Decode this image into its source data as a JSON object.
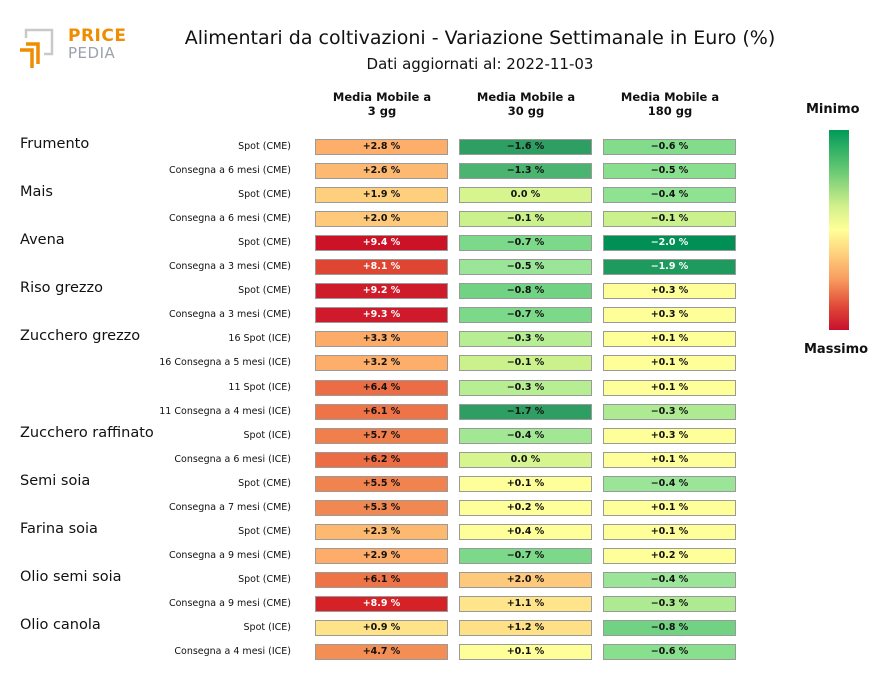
{
  "logo": {
    "line1": "PRICE",
    "line2": "PEDIA"
  },
  "title": "Alimentari da coltivazioni - Variazione Settimanale in Euro (%)",
  "subtitle": "Dati aggiornati al: 2022-11-03",
  "legend": {
    "min_label": "Minimo",
    "max_label": "Massimo"
  },
  "chart_data": {
    "type": "table",
    "title": "Alimentari da coltivazioni - Variazione Settimanale in Euro (%)",
    "columns": [
      "Media Mobile a\n3 gg",
      "Media Mobile a\n30 gg",
      "Media Mobile a\n180 gg"
    ],
    "groups": [
      {
        "name": "Frumento",
        "rows": [
          {
            "label": "Spot (CME)",
            "values": [
              "+2.8 %",
              "−1.6 %",
              "−0.6 %"
            ]
          },
          {
            "label": "Consegna a 6 mesi (CME)",
            "values": [
              "+2.6 %",
              "−1.3 %",
              "−0.5 %"
            ]
          }
        ]
      },
      {
        "name": "Mais",
        "rows": [
          {
            "label": "Spot (CME)",
            "values": [
              "+1.9 %",
              "0.0 %",
              "−0.4 %"
            ]
          },
          {
            "label": "Consegna a 6 mesi (CME)",
            "values": [
              "+2.0 %",
              "−0.1 %",
              "−0.1 %"
            ]
          }
        ]
      },
      {
        "name": "Avena",
        "rows": [
          {
            "label": "Spot (CME)",
            "values": [
              "+9.4 %",
              "−0.7 %",
              "−2.0 %"
            ]
          },
          {
            "label": "Consegna a 3 mesi (CME)",
            "values": [
              "+8.1 %",
              "−0.5 %",
              "−1.9 %"
            ]
          }
        ]
      },
      {
        "name": "Riso grezzo",
        "rows": [
          {
            "label": "Spot (CME)",
            "values": [
              "+9.2 %",
              "−0.8 %",
              "+0.3 %"
            ]
          },
          {
            "label": "Consegna a 3 mesi (CME)",
            "values": [
              "+9.3 %",
              "−0.7 %",
              "+0.3 %"
            ]
          }
        ]
      },
      {
        "name": "Zucchero grezzo",
        "rows": [
          {
            "label": "16 Spot (ICE)",
            "values": [
              "+3.3 %",
              "−0.3 %",
              "+0.1 %"
            ]
          },
          {
            "label": "16 Consegna a 5 mesi (ICE)",
            "values": [
              "+3.2 %",
              "−0.1 %",
              "+0.1 %"
            ]
          },
          {
            "label": "11 Spot (ICE)",
            "values": [
              "+6.4 %",
              "−0.3 %",
              "+0.1 %"
            ]
          },
          {
            "label": "11 Consegna a 4 mesi (ICE)",
            "values": [
              "+6.1 %",
              "−1.7 %",
              "−0.3 %"
            ]
          }
        ]
      },
      {
        "name": "Zucchero raffinato",
        "rows": [
          {
            "label": "Spot (ICE)",
            "values": [
              "+5.7 %",
              "−0.4 %",
              "+0.3 %"
            ]
          },
          {
            "label": "Consegna a 6 mesi (ICE)",
            "values": [
              "+6.2 %",
              "0.0 %",
              "+0.1 %"
            ]
          }
        ]
      },
      {
        "name": "Semi soia",
        "rows": [
          {
            "label": "Spot (CME)",
            "values": [
              "+5.5 %",
              "+0.1 %",
              "−0.4 %"
            ]
          },
          {
            "label": "Consegna a 7 mesi (CME)",
            "values": [
              "+5.3 %",
              "+0.2 %",
              "+0.1 %"
            ]
          }
        ]
      },
      {
        "name": "Farina soia",
        "rows": [
          {
            "label": "Spot (CME)",
            "values": [
              "+2.3 %",
              "+0.4 %",
              "+0.1 %"
            ]
          },
          {
            "label": "Consegna a 9 mesi (CME)",
            "values": [
              "+2.9 %",
              "−0.7 %",
              "+0.2 %"
            ]
          }
        ]
      },
      {
        "name": "Olio semi soia",
        "rows": [
          {
            "label": "Spot (CME)",
            "values": [
              "+6.1 %",
              "+2.0 %",
              "−0.4 %"
            ]
          },
          {
            "label": "Consegna a 9 mesi (CME)",
            "values": [
              "+8.9 %",
              "+1.1 %",
              "−0.3 %"
            ]
          }
        ]
      },
      {
        "name": "Olio canola",
        "rows": [
          {
            "label": "Spot (ICE)",
            "values": [
              "+0.9 %",
              "+1.2 %",
              "−0.8 %"
            ]
          },
          {
            "label": "Consegna a 4 mesi (ICE)",
            "values": [
              "+4.7 %",
              "+0.1 %",
              "−0.6 %"
            ]
          }
        ]
      }
    ],
    "colors": [
      [
        "#fdae6b",
        "#2e9e63",
        "#82dc8b"
      ],
      [
        "#fdb871",
        "#4bb471",
        "#88df8e"
      ],
      [
        "#fed07d",
        "#d7f58f",
        "#8ee292"
      ],
      [
        "#fec97b",
        "#cbf18c",
        "#cbf18c"
      ],
      [
        "#cc1226",
        "#7cd98a",
        "#008f54"
      ],
      [
        "#de4532",
        "#9ae597",
        "#1f9a5f"
      ],
      [
        "#cf1c2b",
        "#72d284",
        "#ffff99"
      ],
      [
        "#ce1a2a",
        "#7cd98a",
        "#ffff99"
      ],
      [
        "#fdab69",
        "#b8ee93",
        "#ffff99"
      ],
      [
        "#fdae6b",
        "#cbf18c",
        "#ffff99"
      ],
      [
        "#ec6d45",
        "#b8ee93",
        "#ffff99"
      ],
      [
        "#ee7447",
        "#2e9e63",
        "#aeea92"
      ],
      [
        "#f07f4c",
        "#a2e894",
        "#ffff99"
      ],
      [
        "#ec6c44",
        "#d7f58f",
        "#ffff99"
      ],
      [
        "#f1834e",
        "#ffff99",
        "#9ae597"
      ],
      [
        "#f28851",
        "#ffff99",
        "#ffff99"
      ],
      [
        "#fdb96f",
        "#ffff99",
        "#ffff99"
      ],
      [
        "#fdac6a",
        "#7cd98a",
        "#ffff99"
      ],
      [
        "#ee7447",
        "#fec97b",
        "#9ae597"
      ],
      [
        "#d52226",
        "#fee48a",
        "#aeea92"
      ],
      [
        "#fee388",
        "#fee086",
        "#72d284"
      ],
      [
        "#f38f55",
        "#ffff99",
        "#88df8e"
      ]
    ]
  }
}
